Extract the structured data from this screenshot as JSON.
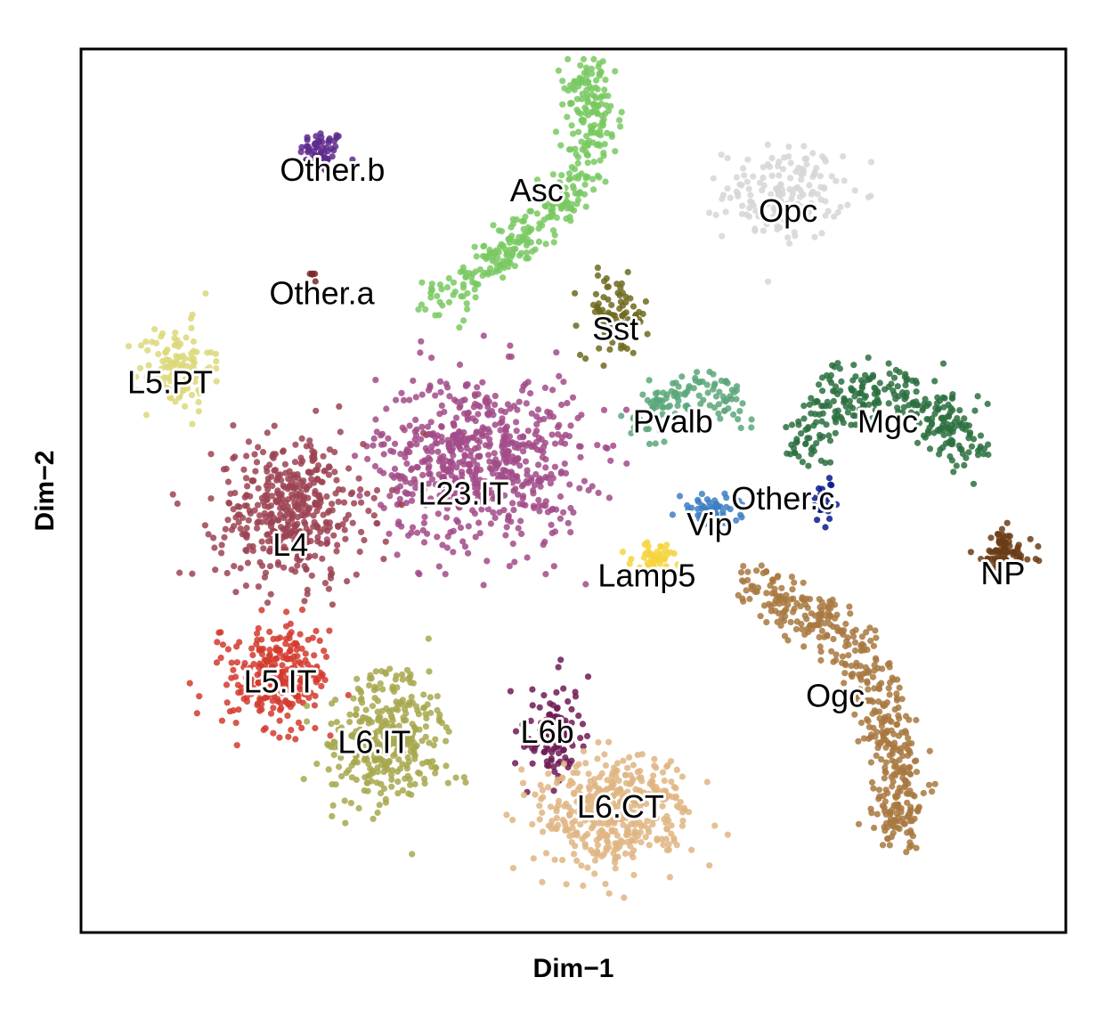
{
  "chart_data": {
    "type": "scatter",
    "title": "",
    "xlabel": "Dim−1",
    "ylabel": "Dim−2",
    "xlim": [
      -48,
      46
    ],
    "ylim": [
      -44,
      42
    ],
    "grid": false,
    "legend": "none (labels placed at cluster centers)",
    "ticks": "none",
    "clusters": [
      {
        "name": "Other.b",
        "color": "#5e2a8c",
        "n": 60,
        "shape": "blob",
        "center": [
          -25,
          32
        ],
        "spread": [
          1.5,
          1.5
        ]
      },
      {
        "name": "Asc",
        "color": "#79c962",
        "n": 380,
        "shape": "path",
        "path": [
          [
            -15,
            17
          ],
          [
            -9,
            21
          ],
          [
            -4,
            25
          ],
          [
            0,
            30
          ],
          [
            1,
            36
          ],
          [
            0,
            40
          ]
        ],
        "width": 2.0
      },
      {
        "name": "Opc",
        "color": "#d6d6d6",
        "n": 150,
        "shape": "blob",
        "center": [
          19,
          28
        ],
        "spread": [
          4,
          3.2
        ]
      },
      {
        "name": "Other.a",
        "color": "#7a2a2a",
        "n": 6,
        "shape": "blob",
        "center": [
          -26,
          20
        ],
        "spread": [
          0.4,
          0.3
        ]
      },
      {
        "name": "Sst",
        "color": "#6e6a1e",
        "n": 90,
        "shape": "blob",
        "center": [
          3,
          16
        ],
        "spread": [
          2.3,
          2.8
        ]
      },
      {
        "name": "L5.PT",
        "color": "#dcd87a",
        "n": 120,
        "shape": "blob",
        "center": [
          -39,
          11
        ],
        "spread": [
          2.5,
          3.0
        ]
      },
      {
        "name": "Pvalb",
        "color": "#5aa77a",
        "n": 120,
        "shape": "path",
        "path": [
          [
            5,
            5
          ],
          [
            8,
            8
          ],
          [
            12,
            9
          ],
          [
            15,
            7
          ]
        ],
        "width": 2.0
      },
      {
        "name": "Mgc",
        "color": "#2b7040",
        "n": 300,
        "shape": "path",
        "path": [
          [
            21,
            3
          ],
          [
            24,
            8
          ],
          [
            29,
            9
          ],
          [
            34,
            6
          ],
          [
            37,
            3
          ]
        ],
        "width": 2.6
      },
      {
        "name": "L23.IT",
        "color": "#a24b88",
        "n": 650,
        "shape": "blob",
        "center": [
          -10,
          2
        ],
        "spread": [
          7.0,
          6.0
        ]
      },
      {
        "name": "L4",
        "color": "#9c4352",
        "n": 430,
        "shape": "blob",
        "center": [
          -28,
          -3
        ],
        "spread": [
          5.0,
          5.0
        ]
      },
      {
        "name": "Other.c",
        "color": "#0a1a8a",
        "n": 30,
        "shape": "blob",
        "center": [
          23,
          -2
        ],
        "spread": [
          1.0,
          1.5
        ]
      },
      {
        "name": "Vip",
        "color": "#3d7fc1",
        "n": 55,
        "shape": "blob",
        "center": [
          12,
          -3
        ],
        "spread": [
          2.0,
          1.2
        ]
      },
      {
        "name": "Lamp5",
        "color": "#f5d33d",
        "n": 45,
        "shape": "blob",
        "center": [
          7,
          -7.5
        ],
        "spread": [
          1.7,
          1.0
        ]
      },
      {
        "name": "NP",
        "color": "#6b3d16",
        "n": 80,
        "shape": "blob",
        "center": [
          40,
          -7
        ],
        "spread": [
          2.0,
          1.6
        ]
      },
      {
        "name": "Ogc",
        "color": "#a87840",
        "n": 450,
        "shape": "path",
        "path": [
          [
            16,
            -10
          ],
          [
            22,
            -13
          ],
          [
            27,
            -18
          ],
          [
            29,
            -24
          ],
          [
            30,
            -30
          ],
          [
            30,
            -35
          ]
        ],
        "width": 2.2
      },
      {
        "name": "L5.IT",
        "color": "#d33a2e",
        "n": 260,
        "shape": "blob",
        "center": [
          -29,
          -19
        ],
        "spread": [
          3.5,
          3.5
        ]
      },
      {
        "name": "L6.IT",
        "color": "#a7a84e",
        "n": 330,
        "shape": "blob",
        "center": [
          -19,
          -25
        ],
        "spread": [
          4.0,
          4.5
        ]
      },
      {
        "name": "L6b",
        "color": "#6e1b55",
        "n": 110,
        "shape": "blob",
        "center": [
          -3,
          -25
        ],
        "spread": [
          2.0,
          3.3
        ]
      },
      {
        "name": "L6.CT",
        "color": "#dfb582",
        "n": 430,
        "shape": "blob",
        "center": [
          3,
          -32
        ],
        "spread": [
          5.0,
          4.0
        ]
      }
    ],
    "label_positions": [
      {
        "name": "Other.b",
        "x": -24,
        "y": 30
      },
      {
        "name": "Asc",
        "x": -4.5,
        "y": 28
      },
      {
        "name": "Opc",
        "x": 19.5,
        "y": 26
      },
      {
        "name": "Other.a",
        "x": -25,
        "y": 18
      },
      {
        "name": "Sst",
        "x": 3,
        "y": 14.5
      },
      {
        "name": "L5.PT",
        "x": -39.5,
        "y": 9.3
      },
      {
        "name": "Pvalb",
        "x": 8.5,
        "y": 5.5
      },
      {
        "name": "Mgc",
        "x": 29,
        "y": 5.5
      },
      {
        "name": "L23.IT",
        "x": -11.5,
        "y": -1.5
      },
      {
        "name": "L4",
        "x": -28,
        "y": -6.5
      },
      {
        "name": "Other.c",
        "x": 19,
        "y": -2
      },
      {
        "name": "Vip",
        "x": 12,
        "y": -4.5
      },
      {
        "name": "Lamp5",
        "x": 6,
        "y": -9.5
      },
      {
        "name": "NP",
        "x": 40,
        "y": -9.3
      },
      {
        "name": "Ogc",
        "x": 24,
        "y": -21.2
      },
      {
        "name": "L5.IT",
        "x": -29,
        "y": -19.8
      },
      {
        "name": "L6.IT",
        "x": -20,
        "y": -25.7
      },
      {
        "name": "L6b",
        "x": -3.5,
        "y": -24.7
      },
      {
        "name": "L6.CT",
        "x": 3.5,
        "y": -32
      }
    ]
  }
}
